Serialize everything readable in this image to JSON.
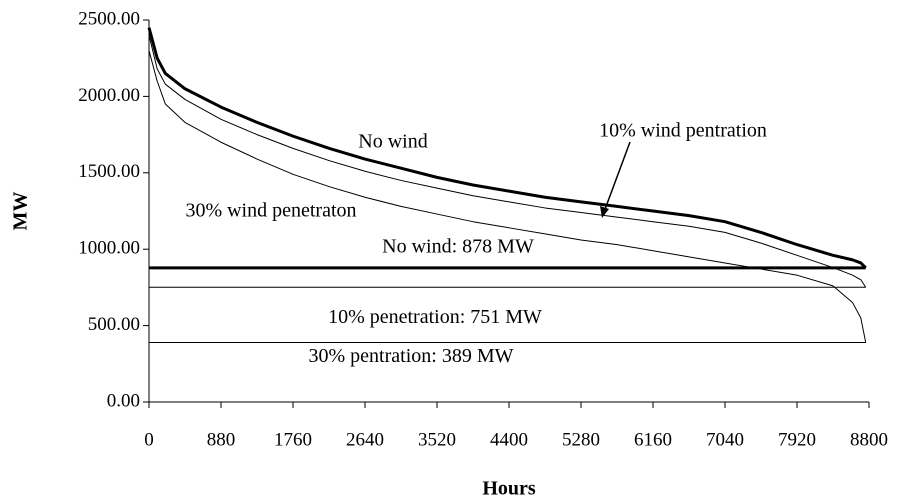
{
  "chart_data": {
    "type": "line",
    "x_label": "Hours",
    "y_label": "MW",
    "xlim": [
      0,
      8800
    ],
    "ylim": [
      0,
      2500
    ],
    "xticks": [
      0,
      880,
      1760,
      2640,
      3520,
      4400,
      5280,
      6160,
      7040,
      7920,
      8800
    ],
    "yticks": [
      {
        "value": 0,
        "label": "0.00"
      },
      {
        "value": 500,
        "label": "500.00"
      },
      {
        "value": 1000,
        "label": "1000.00"
      },
      {
        "value": 1500,
        "label": "1500.00"
      },
      {
        "value": 2000,
        "label": "2000.00"
      },
      {
        "value": 2500,
        "label": "2500.00"
      }
    ],
    "grid": false,
    "x": [
      0,
      100,
      200,
      440,
      880,
      1320,
      1760,
      2200,
      2640,
      3080,
      3520,
      3960,
      4400,
      4840,
      5280,
      5720,
      6160,
      6600,
      7040,
      7480,
      7920,
      8360,
      8600,
      8700,
      8760
    ],
    "series": [
      {
        "name": "No wind",
        "color": "#000000",
        "line_width": 3,
        "values": [
          2450,
          2250,
          2150,
          2050,
          1930,
          1830,
          1740,
          1660,
          1590,
          1530,
          1470,
          1420,
          1380,
          1340,
          1310,
          1280,
          1250,
          1220,
          1180,
          1110,
          1030,
          960,
          930,
          910,
          878
        ]
      },
      {
        "name": "10% wind pentration",
        "color": "#000000",
        "line_width": 1,
        "values": [
          2400,
          2180,
          2080,
          1980,
          1850,
          1750,
          1660,
          1580,
          1510,
          1450,
          1400,
          1350,
          1310,
          1270,
          1240,
          1210,
          1180,
          1150,
          1110,
          1040,
          960,
          880,
          830,
          800,
          751
        ]
      },
      {
        "name": "30% wind penetraton",
        "color": "#000000",
        "line_width": 1,
        "values": [
          2300,
          2100,
          1950,
          1830,
          1700,
          1590,
          1490,
          1410,
          1340,
          1280,
          1230,
          1180,
          1140,
          1100,
          1060,
          1030,
          990,
          950,
          910,
          870,
          830,
          760,
          650,
          550,
          389
        ]
      }
    ],
    "reference_lines": [
      {
        "value": 878,
        "label": "No wind: 878 MW",
        "line_width": 3
      },
      {
        "value": 751,
        "label": "10% penetration: 751 MW",
        "line_width": 1
      },
      {
        "value": 389,
        "label": "30% pentration: 389 MW",
        "line_width": 1
      }
    ]
  }
}
